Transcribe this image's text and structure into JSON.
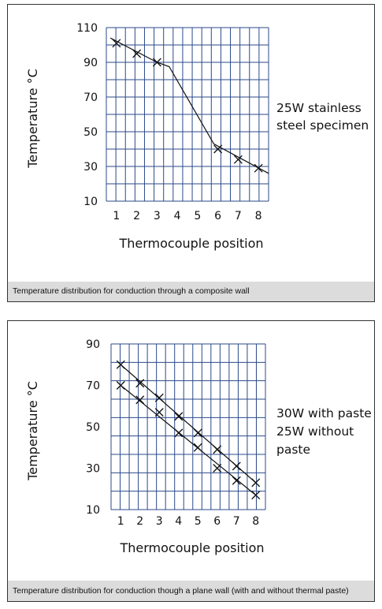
{
  "chart_data": [
    {
      "type": "line",
      "xlabel": "Thermocouple position",
      "ylabel": "Temperature °C",
      "x": [
        1,
        2,
        3,
        4,
        5,
        6,
        7,
        8
      ],
      "x_ticks": [
        "1",
        "2",
        "3",
        "4",
        "5",
        "6",
        "7",
        "8"
      ],
      "y_ticks": [
        "10",
        "30",
        "50",
        "70",
        "90",
        "110"
      ],
      "xlim": [
        0.5,
        8.5
      ],
      "ylim": [
        10,
        110
      ],
      "grid": true,
      "annotation_lines": [
        "25W stainless",
        "steel specimen"
      ],
      "caption": "Temperature distribution for conduction through a composite wall",
      "series": [
        {
          "markers": [
            [
              1,
              101
            ],
            [
              2,
              95
            ],
            [
              3,
              90
            ],
            [
              6,
              40
            ],
            [
              7,
              34
            ],
            [
              8,
              29
            ]
          ],
          "line": [
            [
              0.7,
              104
            ],
            [
              3.0,
              90
            ],
            [
              3.6,
              87.5
            ],
            [
              5.8,
              43
            ],
            [
              8.5,
              26
            ]
          ]
        }
      ]
    },
    {
      "type": "line",
      "xlabel": "Thermocouple position",
      "ylabel": "Temperature °C",
      "x": [
        1,
        2,
        3,
        4,
        5,
        6,
        7,
        8
      ],
      "x_ticks": [
        "1",
        "2",
        "3",
        "4",
        "5",
        "6",
        "7",
        "8"
      ],
      "y_ticks": [
        "10",
        "30",
        "50",
        "70",
        "90"
      ],
      "xlim": [
        0.5,
        8.5
      ],
      "ylim": [
        10,
        90
      ],
      "grid": true,
      "annotation_lines": [
        "30W with paste",
        "25W without",
        "paste"
      ],
      "caption": "Temperature distribution for conduction though a plane wall (with and without thermal paste)",
      "series": [
        {
          "markers": [
            [
              1,
              80
            ],
            [
              2,
              71
            ],
            [
              3,
              64
            ],
            [
              4,
              55
            ],
            [
              5,
              47
            ],
            [
              6,
              39
            ],
            [
              7,
              31
            ],
            [
              8,
              23
            ]
          ],
          "line": [
            [
              1,
              80
            ],
            [
              8,
              23
            ]
          ]
        },
        {
          "markers": [
            [
              1,
              70
            ],
            [
              2,
              63
            ],
            [
              3,
              57
            ],
            [
              4,
              47
            ],
            [
              5,
              40
            ],
            [
              6,
              30
            ],
            [
              7,
              24
            ],
            [
              8,
              17
            ]
          ],
          "line": [
            [
              1,
              70
            ],
            [
              8,
              17
            ]
          ]
        }
      ]
    }
  ]
}
